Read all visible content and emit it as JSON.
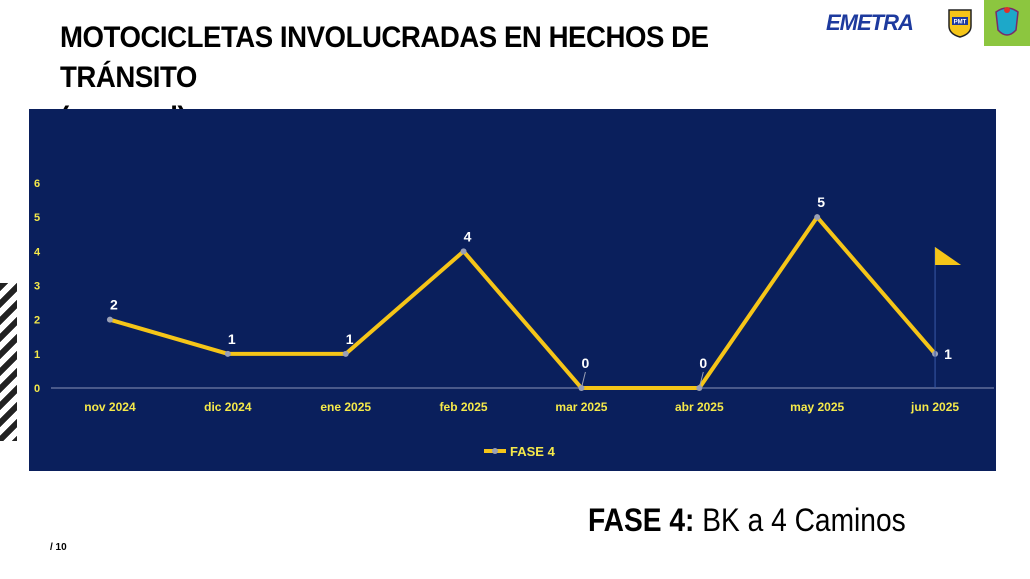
{
  "header": {
    "title_line1": "MOTOCICLETAS INVOLUCRADAS EN HECHOS DE TRÁNSITO",
    "title_line2": "(mensual)"
  },
  "logos": {
    "emetra": "EMETRA",
    "pmt": "PMT"
  },
  "footer": {
    "phase_label": "FASE 4:",
    "phase_route": "BK a 4 Caminos",
    "page_number": "/ 10"
  },
  "colors": {
    "panel": "#0a1f5c",
    "line": "#f5c518",
    "tick_labels": "#f5e94a",
    "data_labels": "#ffffff"
  },
  "chart_data": {
    "type": "line",
    "categories": [
      "nov 2024",
      "dic 2024",
      "ene 2025",
      "feb 2025",
      "mar 2025",
      "abr 2025",
      "may 2025",
      "jun 2025"
    ],
    "series": [
      {
        "name": "FASE 4",
        "values": [
          2,
          1,
          1,
          4,
          0,
          0,
          5,
          1
        ]
      }
    ],
    "y_ticks": [
      0,
      1,
      2,
      3,
      4,
      5,
      6
    ],
    "ylim": [
      0,
      6
    ],
    "legend": "bottom",
    "data_labels": true,
    "grid": false
  }
}
